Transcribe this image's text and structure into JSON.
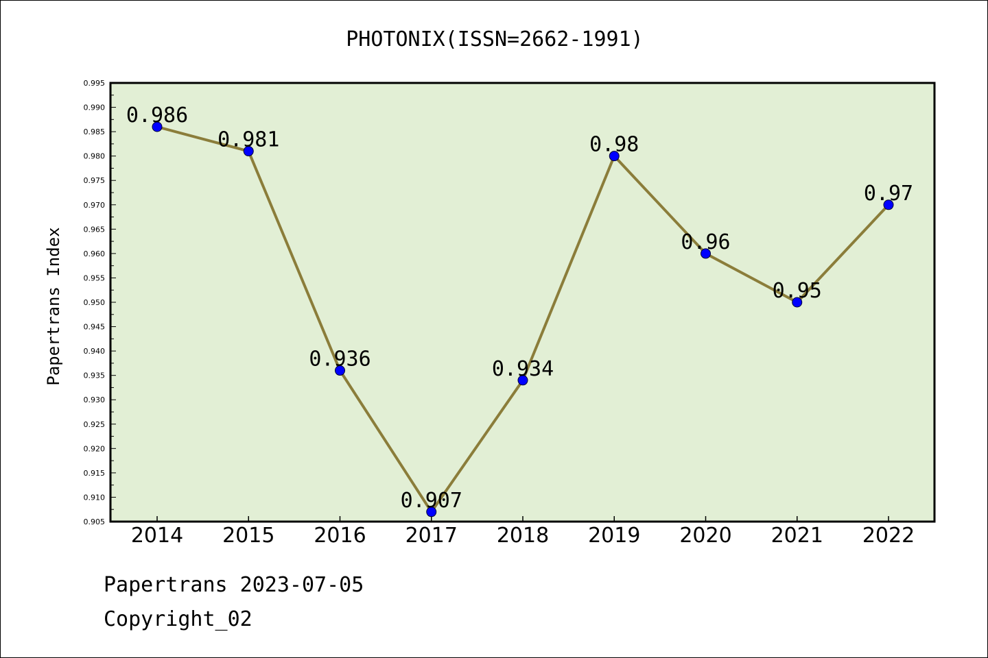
{
  "chart_data": {
    "type": "line",
    "title": "PHOTONIX(ISSN=2662-1991)",
    "xlabel": "",
    "ylabel": "Papertrans Index",
    "categories": [
      "2014",
      "2015",
      "2016",
      "2017",
      "2018",
      "2019",
      "2020",
      "2021",
      "2022"
    ],
    "values": [
      0.986,
      0.981,
      0.936,
      0.907,
      0.934,
      0.98,
      0.96,
      0.95,
      0.97
    ],
    "data_labels": [
      "0.986",
      "0.981",
      "0.936",
      "0.907",
      "0.934",
      "0.98",
      "0.96",
      "0.95",
      "0.97"
    ],
    "ylim": [
      0.905,
      0.995
    ],
    "yticks": [
      0.905,
      0.91,
      0.915,
      0.92,
      0.925,
      0.93,
      0.935,
      0.94,
      0.945,
      0.95,
      0.955,
      0.96,
      0.965,
      0.97,
      0.975,
      0.98,
      0.985,
      0.99,
      0.995
    ],
    "ytick_labels": [
      "0.905",
      "0.910",
      "0.915",
      "0.920",
      "0.925",
      "0.930",
      "0.935",
      "0.940",
      "0.945",
      "0.950",
      "0.955",
      "0.960",
      "0.965",
      "0.970",
      "0.975",
      "0.980",
      "0.985",
      "0.990",
      "0.995"
    ],
    "grid": false,
    "legend": "none"
  },
  "colors": {
    "plot_background": "#e2efd5",
    "line": "#8b7d3a",
    "marker": "#0000ff",
    "axis": "#000000"
  },
  "footer": {
    "date_text": "Papertrans 2023-07-05",
    "copyright_text": "Copyright_02"
  }
}
